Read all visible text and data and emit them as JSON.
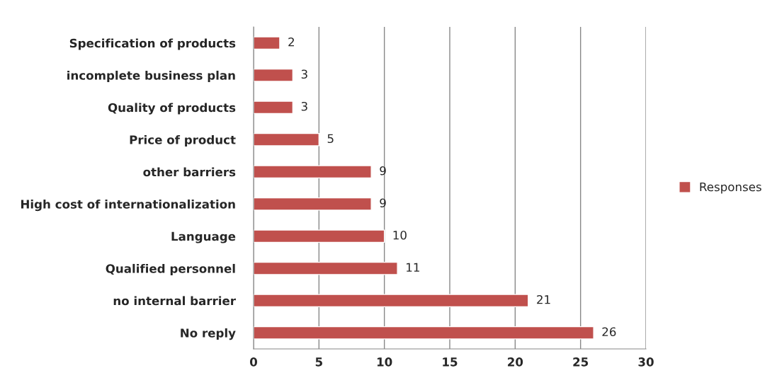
{
  "chart_data": {
    "type": "bar",
    "orientation": "horizontal",
    "categories": [
      "Specification of products",
      "incomplete business plan",
      "Quality of products",
      "Price of product",
      "other barriers",
      "High cost of internationalization",
      "Language",
      "Qualified personnel",
      "no internal barrier",
      "No reply"
    ],
    "series": [
      {
        "name": "Responses",
        "color": "#c0504d",
        "values": [
          2,
          3,
          3,
          5,
          9,
          9,
          10,
          11,
          21,
          26
        ]
      }
    ],
    "xlim": [
      0,
      30
    ],
    "xticks": [
      0,
      5,
      10,
      15,
      20,
      25,
      30
    ],
    "grid": "x",
    "legend": "right",
    "data_labels": true
  }
}
